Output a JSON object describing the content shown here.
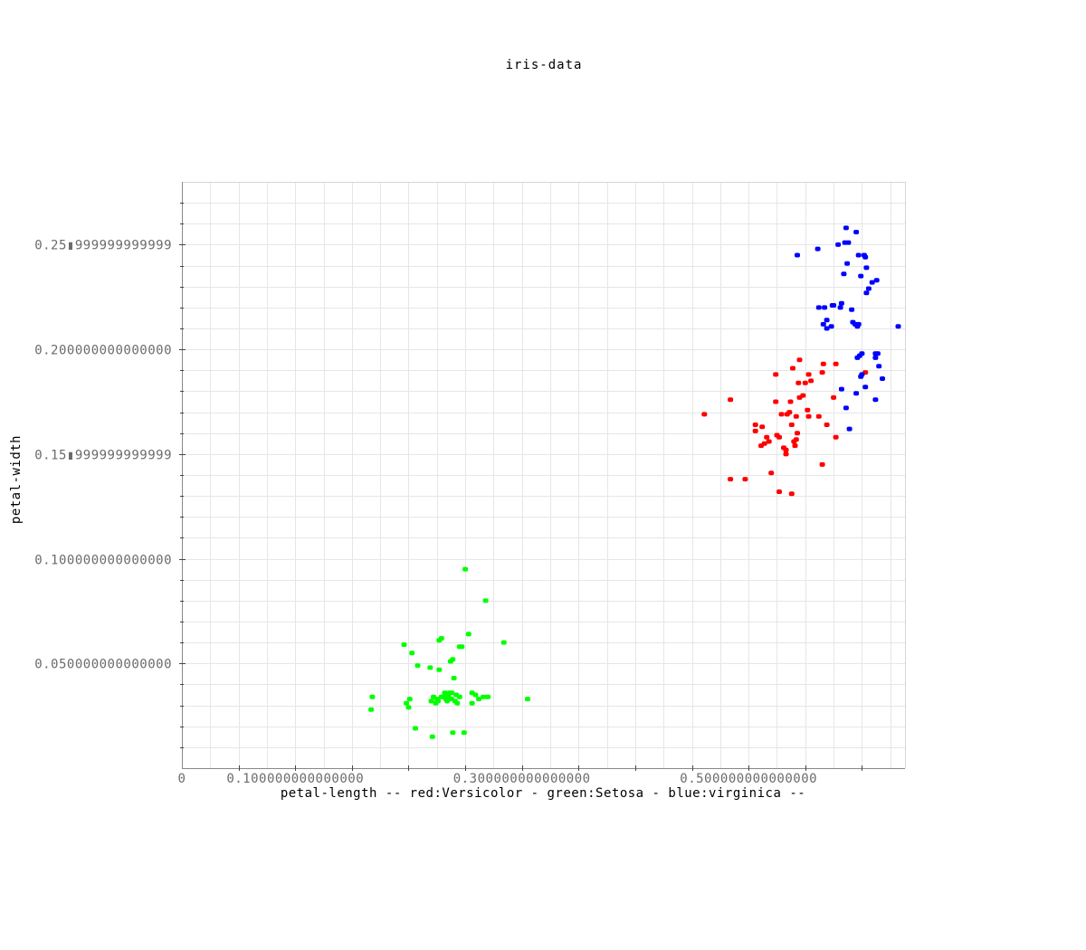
{
  "chart_data": {
    "type": "scatter",
    "title": "iris-data",
    "xlabel": "petal-length -- red:Versicolor - green:Setosa - blue:virginica --",
    "ylabel": "petal-width",
    "xlim": [
      0,
      0.638
    ],
    "ylim": [
      0.0,
      0.28
    ],
    "x_ticks": [
      {
        "value": 0,
        "label": "0"
      },
      {
        "value": 0.1,
        "label": "0.100000000000000"
      },
      {
        "value": 0.3,
        "label": "0.300000000000000"
      },
      {
        "value": 0.5,
        "label": "0.500000000000000"
      }
    ],
    "y_ticks": [
      {
        "value": 0.05,
        "label": "0.050000000000000"
      },
      {
        "value": 0.1,
        "label": "0.100000000000000"
      },
      {
        "value": 0.15,
        "label": "0.15▮999999999999"
      },
      {
        "value": 0.2,
        "label": "0.200000000000000"
      },
      {
        "value": 0.25,
        "label": "0.25▮999999999999"
      }
    ],
    "grid": true,
    "series": [
      {
        "name": "Versicolor",
        "color": "#ff0000",
        "points": [
          [
            0.461,
            0.169
          ],
          [
            0.484,
            0.176
          ],
          [
            0.506,
            0.164
          ],
          [
            0.506,
            0.161
          ],
          [
            0.511,
            0.154
          ],
          [
            0.512,
            0.163
          ],
          [
            0.514,
            0.155
          ],
          [
            0.516,
            0.158
          ],
          [
            0.518,
            0.156
          ],
          [
            0.52,
            0.141
          ],
          [
            0.524,
            0.188
          ],
          [
            0.524,
            0.175
          ],
          [
            0.525,
            0.159
          ],
          [
            0.527,
            0.158
          ],
          [
            0.527,
            0.132
          ],
          [
            0.529,
            0.169
          ],
          [
            0.531,
            0.153
          ],
          [
            0.533,
            0.15
          ],
          [
            0.533,
            0.152
          ],
          [
            0.534,
            0.169
          ],
          [
            0.536,
            0.17
          ],
          [
            0.537,
            0.175
          ],
          [
            0.538,
            0.164
          ],
          [
            0.538,
            0.131
          ],
          [
            0.539,
            0.191
          ],
          [
            0.54,
            0.156
          ],
          [
            0.541,
            0.154
          ],
          [
            0.542,
            0.157
          ],
          [
            0.542,
            0.168
          ],
          [
            0.543,
            0.16
          ],
          [
            0.544,
            0.184
          ],
          [
            0.545,
            0.177
          ],
          [
            0.545,
            0.195
          ],
          [
            0.548,
            0.178
          ],
          [
            0.55,
            0.184
          ],
          [
            0.552,
            0.171
          ],
          [
            0.553,
            0.188
          ],
          [
            0.553,
            0.168
          ],
          [
            0.555,
            0.185
          ],
          [
            0.562,
            0.168
          ],
          [
            0.565,
            0.145
          ],
          [
            0.565,
            0.189
          ],
          [
            0.569,
            0.164
          ],
          [
            0.575,
            0.177
          ],
          [
            0.577,
            0.193
          ],
          [
            0.577,
            0.158
          ],
          [
            0.603,
            0.189
          ],
          [
            0.484,
            0.138
          ],
          [
            0.566,
            0.193
          ],
          [
            0.497,
            0.138
          ]
        ]
      },
      {
        "name": "Setosa",
        "color": "#00ff00",
        "points": [
          [
            0.167,
            0.028
          ],
          [
            0.168,
            0.034
          ],
          [
            0.196,
            0.059
          ],
          [
            0.198,
            0.031
          ],
          [
            0.2,
            0.029
          ],
          [
            0.201,
            0.033
          ],
          [
            0.203,
            0.055
          ],
          [
            0.206,
            0.019
          ],
          [
            0.208,
            0.049
          ],
          [
            0.219,
            0.048
          ],
          [
            0.22,
            0.032
          ],
          [
            0.221,
            0.015
          ],
          [
            0.222,
            0.034
          ],
          [
            0.224,
            0.031
          ],
          [
            0.225,
            0.033
          ],
          [
            0.226,
            0.032
          ],
          [
            0.227,
            0.061
          ],
          [
            0.227,
            0.047
          ],
          [
            0.229,
            0.062
          ],
          [
            0.231,
            0.034
          ],
          [
            0.232,
            0.036
          ],
          [
            0.234,
            0.032
          ],
          [
            0.235,
            0.034
          ],
          [
            0.236,
            0.036
          ],
          [
            0.237,
            0.051
          ],
          [
            0.238,
            0.036
          ],
          [
            0.238,
            0.033
          ],
          [
            0.239,
            0.017
          ],
          [
            0.239,
            0.052
          ],
          [
            0.24,
            0.043
          ],
          [
            0.241,
            0.032
          ],
          [
            0.242,
            0.035
          ],
          [
            0.243,
            0.031
          ],
          [
            0.245,
            0.058
          ],
          [
            0.247,
            0.058
          ],
          [
            0.249,
            0.017
          ],
          [
            0.25,
            0.095
          ],
          [
            0.253,
            0.064
          ],
          [
            0.256,
            0.036
          ],
          [
            0.256,
            0.031
          ],
          [
            0.259,
            0.035
          ],
          [
            0.262,
            0.033
          ],
          [
            0.266,
            0.034
          ],
          [
            0.268,
            0.08
          ],
          [
            0.27,
            0.034
          ],
          [
            0.284,
            0.06
          ],
          [
            0.305,
            0.033
          ],
          [
            0.233,
            0.033
          ],
          [
            0.229,
            0.034
          ],
          [
            0.245,
            0.034
          ]
        ]
      },
      {
        "name": "virginica",
        "color": "#0000ff",
        "points": [
          [
            0.543,
            0.245
          ],
          [
            0.561,
            0.248
          ],
          [
            0.562,
            0.22
          ],
          [
            0.566,
            0.212
          ],
          [
            0.567,
            0.22
          ],
          [
            0.569,
            0.21
          ],
          [
            0.569,
            0.214
          ],
          [
            0.573,
            0.211
          ],
          [
            0.574,
            0.221
          ],
          [
            0.579,
            0.25
          ],
          [
            0.581,
            0.22
          ],
          [
            0.582,
            0.222
          ],
          [
            0.582,
            0.181
          ],
          [
            0.584,
            0.236
          ],
          [
            0.585,
            0.251
          ],
          [
            0.586,
            0.172
          ],
          [
            0.586,
            0.258
          ],
          [
            0.587,
            0.241
          ],
          [
            0.588,
            0.251
          ],
          [
            0.589,
            0.162
          ],
          [
            0.591,
            0.219
          ],
          [
            0.592,
            0.213
          ],
          [
            0.594,
            0.212
          ],
          [
            0.595,
            0.179
          ],
          [
            0.595,
            0.256
          ],
          [
            0.596,
            0.211
          ],
          [
            0.596,
            0.196
          ],
          [
            0.597,
            0.245
          ],
          [
            0.598,
            0.197
          ],
          [
            0.599,
            0.187
          ],
          [
            0.599,
            0.235
          ],
          [
            0.6,
            0.198
          ],
          [
            0.603,
            0.182
          ],
          [
            0.603,
            0.244
          ],
          [
            0.604,
            0.227
          ],
          [
            0.604,
            0.239
          ],
          [
            0.606,
            0.229
          ],
          [
            0.609,
            0.232
          ],
          [
            0.612,
            0.198
          ],
          [
            0.612,
            0.196
          ],
          [
            0.612,
            0.176
          ],
          [
            0.613,
            0.233
          ],
          [
            0.615,
            0.192
          ],
          [
            0.618,
            0.186
          ],
          [
            0.632,
            0.211
          ],
          [
            0.6,
            0.188
          ],
          [
            0.614,
            0.198
          ],
          [
            0.597,
            0.212
          ],
          [
            0.575,
            0.221
          ],
          [
            0.602,
            0.245
          ]
        ]
      }
    ]
  }
}
